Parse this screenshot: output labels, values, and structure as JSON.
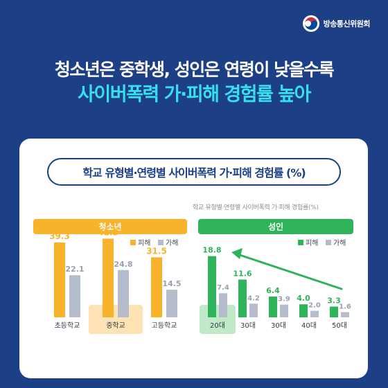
{
  "logo": {
    "text": "방송통신위원회"
  },
  "headline": {
    "line1": "청소년은 중학생, 성인은 연령이 낮을수록",
    "line2": "사이버폭력 가·피해 경험률 높아"
  },
  "chart_title": "학교 유형별·연령별 사이버폭력 가·피해 경험률 (%)",
  "chart_subcaption": "학교 유형별·연령별 사이버폭력 가·피해 경험률(%)",
  "colors": {
    "background": "#1d3f86",
    "accent_cyan": "#36e0ef",
    "youth_victim": "#f7b32b",
    "adult_victim": "#2fb35b",
    "perpetration": "#b5bccb",
    "highlight_youth": "#fde2b3",
    "highlight_adult": "#bfe9c9",
    "value_text": "#f7b32b",
    "gray_text": "#9aa1ad"
  },
  "chart_data": [
    {
      "type": "bar",
      "group_label": "청소년",
      "legend": {
        "victim": "피해",
        "perp": "가해"
      },
      "categories": [
        "초등학교",
        "중학교",
        "고등학교"
      ],
      "series": [
        {
          "name": "피해",
          "values": [
            39.3,
            41.3,
            31.5
          ]
        },
        {
          "name": "가해",
          "values": [
            22.1,
            24.8,
            14.5
          ]
        }
      ],
      "highlight": "중학교"
    },
    {
      "type": "bar",
      "group_label": "성인",
      "legend": {
        "victim": "피해",
        "perp": "가해"
      },
      "categories": [
        "20대",
        "30대",
        "30대",
        "40대",
        "50대"
      ],
      "series": [
        {
          "name": "피해",
          "values": [
            18.8,
            11.6,
            6.4,
            4.0,
            3.3
          ]
        },
        {
          "name": "가해",
          "values": [
            7.4,
            4.2,
            3.9,
            2.0,
            1.6
          ]
        }
      ],
      "highlight": "20대"
    }
  ]
}
